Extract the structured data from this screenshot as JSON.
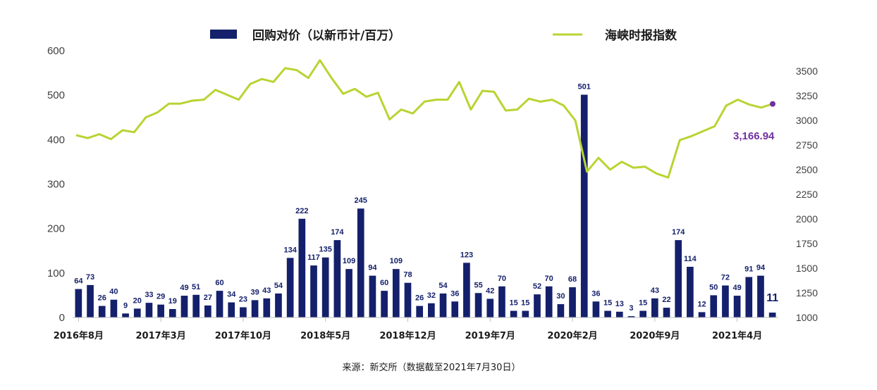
{
  "legend": {
    "bars_label": "回购对价（以新币计/百万）",
    "line_label": "海峡时报指数"
  },
  "source": "来源：新交所（数据截至2021年7月30日）",
  "colors": {
    "bar": "#14206b",
    "line": "#b8d432",
    "end_marker": "#7030a0",
    "axis": "#bfbfbf"
  },
  "chart_data": {
    "type": "bar+line",
    "x_tick_labels": [
      "2016年8月",
      "2017年3月",
      "2017年10月",
      "2018年5月",
      "2018年12月",
      "2019年7月",
      "2020年2月",
      "2020年9月",
      "2021年4月"
    ],
    "x_tick_indices": [
      0,
      7,
      14,
      21,
      28,
      35,
      42,
      49,
      56
    ],
    "y_left_ticks": [
      0,
      100,
      200,
      300,
      400,
      500,
      600
    ],
    "y_left_range": [
      0,
      600
    ],
    "y_right_ticks": [
      1000,
      1250,
      1500,
      1750,
      2000,
      2250,
      2500,
      2750,
      3000,
      3250,
      3500
    ],
    "y_right_range": [
      1000,
      3500
    ],
    "series": [
      {
        "name": "回购对价（以新币计/百万）",
        "axis": "left",
        "kind": "bar",
        "values": [
          64,
          73,
          26,
          40,
          9,
          20,
          33,
          29,
          19,
          49,
          51,
          27,
          60,
          34,
          23,
          39,
          43,
          54,
          134,
          222,
          117,
          135,
          174,
          109,
          245,
          94,
          60,
          109,
          78,
          26,
          32,
          54,
          36,
          123,
          55,
          42,
          70,
          15,
          15,
          52,
          70,
          30,
          68,
          501,
          36,
          15,
          13,
          3,
          15,
          43,
          22,
          174,
          114,
          12,
          50,
          72,
          49,
          91,
          94,
          11
        ],
        "labels": [
          "64",
          "73",
          "26",
          "40",
          "9",
          "20",
          "33",
          "29",
          "19",
          "49",
          "51",
          "27",
          "60",
          "34",
          "23",
          "39",
          "43",
          "54",
          "134",
          "222",
          "117",
          "135",
          "174",
          "109",
          "245",
          "94",
          "60",
          "109",
          "78",
          "26",
          "32",
          "54",
          "36",
          "123",
          "55",
          "42",
          "70",
          "15",
          "15",
          "52",
          "70",
          "30",
          "68",
          "501",
          "36",
          "15",
          "13",
          "3",
          "15",
          "43",
          "22",
          "174",
          "114",
          "12",
          "50",
          "72",
          "49",
          "91",
          "94",
          "11"
        ]
      },
      {
        "name": "海峡时报指数",
        "axis": "right",
        "kind": "line",
        "values": [
          2850,
          2820,
          2860,
          2810,
          2900,
          2880,
          3030,
          3080,
          3170,
          3170,
          3200,
          3210,
          3310,
          3260,
          3210,
          3370,
          3420,
          3390,
          3530,
          3510,
          3430,
          3610,
          3430,
          3270,
          3320,
          3240,
          3280,
          3010,
          3110,
          3070,
          3190,
          3210,
          3210,
          3390,
          3110,
          3300,
          3290,
          3100,
          3110,
          3220,
          3190,
          3210,
          3150,
          3000,
          2480,
          2620,
          2500,
          2580,
          2520,
          2530,
          2460,
          2420,
          2800,
          2840,
          2890,
          2940,
          3150,
          3210,
          3160,
          3130,
          3166.94
        ]
      }
    ],
    "end_annotation": "3,166.94",
    "grid": false
  }
}
